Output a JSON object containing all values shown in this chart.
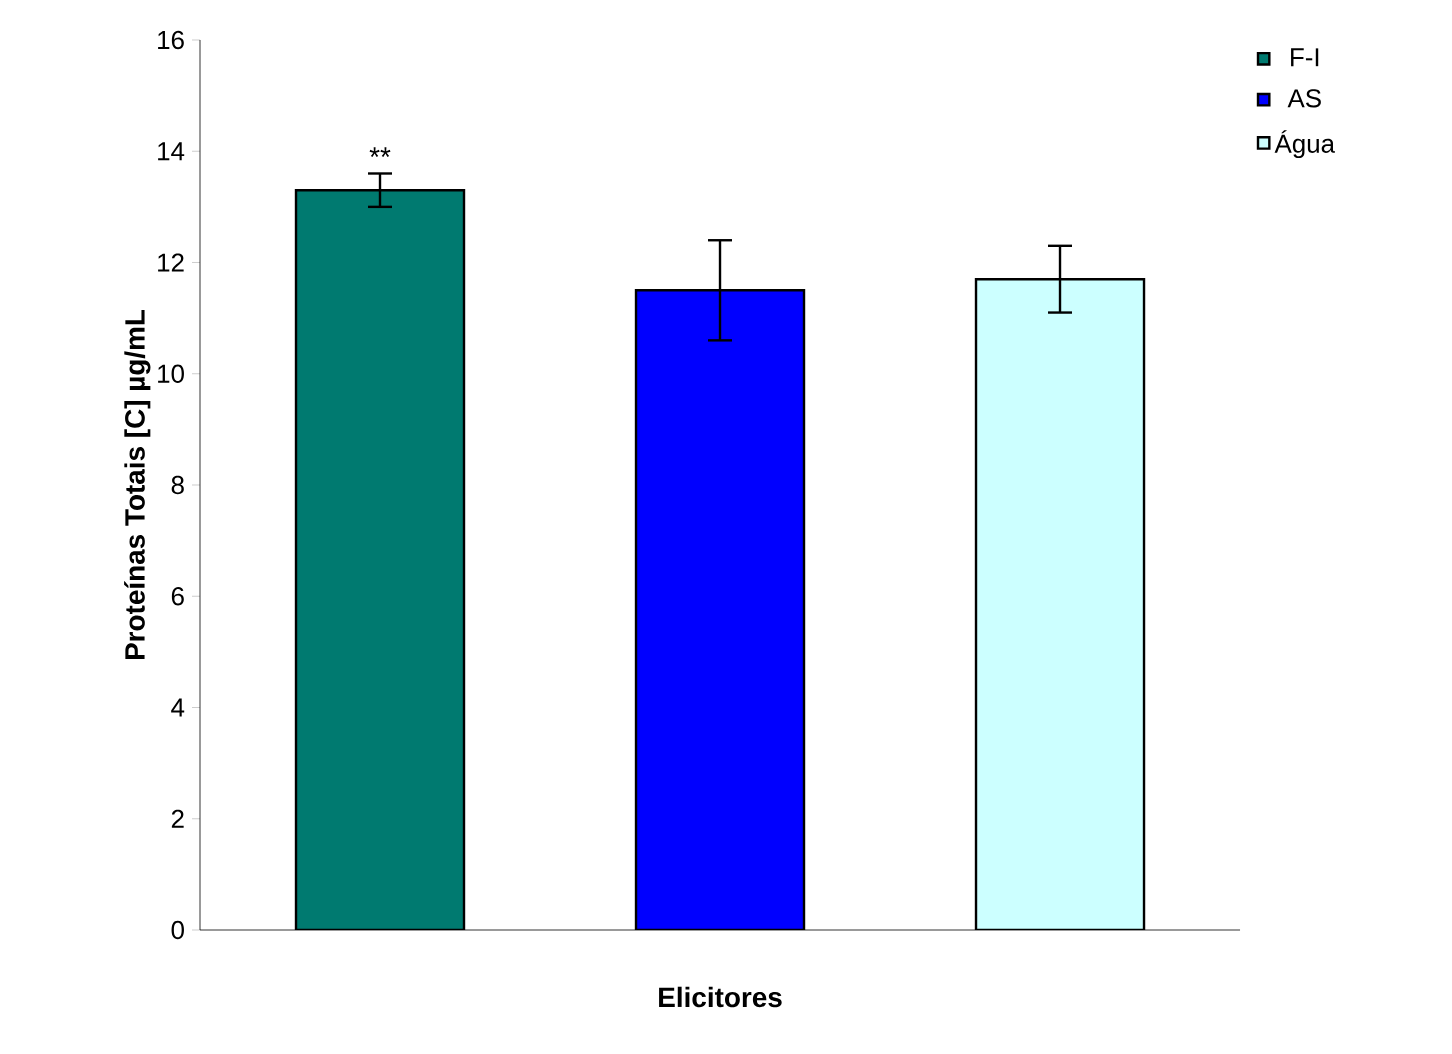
{
  "chart_data": {
    "type": "bar",
    "xlabel": "Elicitores",
    "ylabel": "Proteínas Totais [C] µg/mL",
    "categories": [
      null
    ],
    "series": [
      {
        "name": "F-I",
        "color": "#007a70",
        "values": [
          13.3
        ],
        "errors": [
          0.3
        ]
      },
      {
        "name": "AS",
        "color": "#0000ff",
        "values": [
          11.5
        ],
        "errors": [
          0.9
        ]
      },
      {
        "name": "Água",
        "color": "#ccffff",
        "values": [
          11.7
        ],
        "errors": [
          0.6
        ]
      }
    ],
    "ylim": [
      0,
      16
    ],
    "yticks": [
      0,
      2,
      4,
      6,
      8,
      10,
      12,
      14,
      16
    ],
    "legend": "top right",
    "annotations": [
      "**"
    ]
  }
}
